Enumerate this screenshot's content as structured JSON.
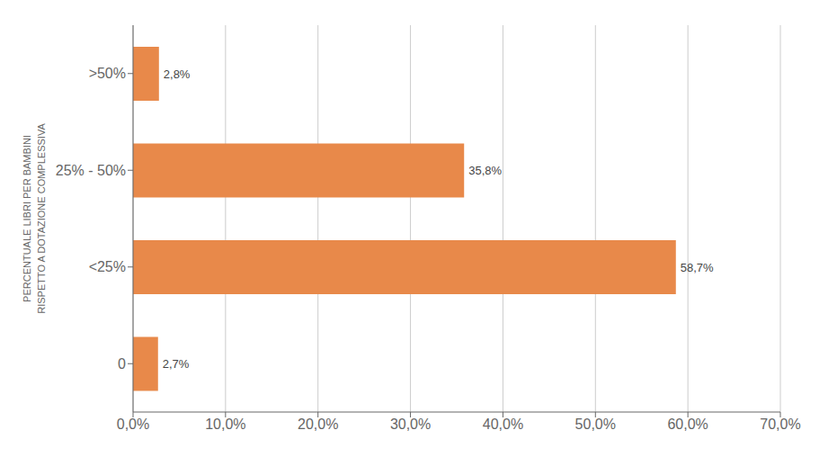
{
  "chart_data": {
    "type": "bar",
    "orientation": "horizontal",
    "categories": [
      "0",
      "<25%",
      "25% - 50%",
      ">50%"
    ],
    "values": [
      2.7,
      58.7,
      35.8,
      2.8
    ],
    "value_labels": [
      "2,7%",
      "58,7%",
      "35,8%",
      "2,8%"
    ],
    "data_labels": true,
    "color": "#E8894A",
    "ylabel": [
      "PERCENTUALE LIBRI PER BAMBINI",
      "RISPETTO A DOTAZIONE COMPLESSIVA"
    ],
    "xlim": [
      0,
      70
    ],
    "xticks": [
      {
        "value": 0,
        "label": "0,0%"
      },
      {
        "value": 10,
        "label": "10,0%"
      },
      {
        "value": 20,
        "label": "20,0%"
      },
      {
        "value": 30,
        "label": "30,0%"
      },
      {
        "value": 40,
        "label": "40,0%"
      },
      {
        "value": 50,
        "label": "50,0%"
      },
      {
        "value": 60,
        "label": "60,0%"
      },
      {
        "value": 70,
        "label": "70,0%"
      }
    ],
    "grid": true
  }
}
